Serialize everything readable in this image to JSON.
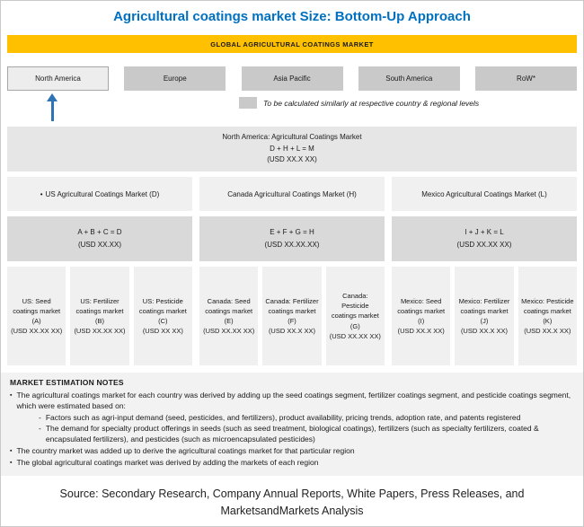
{
  "title": "Agricultural coatings market Size: Bottom-Up Approach",
  "global_bar": "GLOBAL AGRICULTURAL COATINGS MARKET",
  "regions": [
    {
      "label": "North America",
      "highlighted": true
    },
    {
      "label": "Europe",
      "highlighted": false
    },
    {
      "label": "Asia Pacific",
      "highlighted": false
    },
    {
      "label": "South America",
      "highlighted": false
    },
    {
      "label": "RoW*",
      "highlighted": false
    }
  ],
  "legend_note": "To be calculated similarly at respective country & regional levels",
  "na_box": {
    "line1": "North America: Agricultural Coatings Market",
    "line2": "D + H + L = M",
    "line3": "(USD XX.X XX)"
  },
  "countries": [
    {
      "bullet": "•",
      "label": "US Agricultural Coatings Market (D)"
    },
    {
      "bullet": "",
      "label": "Canada Agricultural Coatings Market (H)"
    },
    {
      "bullet": "",
      "label": "Mexico Agricultural Coatings Market (L)"
    }
  ],
  "sums": [
    {
      "formula": "A + B + C = D",
      "value": "(USD XX.XX)"
    },
    {
      "formula": "E + F + G = H",
      "value": "(USD XX.XX.XX)"
    },
    {
      "formula": "I + J + K = L",
      "value": "(USD XX.XX XX)"
    }
  ],
  "segments": [
    {
      "label": "US: Seed coatings market (A)",
      "value": "(USD XX.XX XX)"
    },
    {
      "label": "US: Fertilizer coatings market (B)",
      "value": "(USD XX.XX XX)"
    },
    {
      "label": "US: Pesticide coatings market (C)",
      "value": "(USD XX XX)"
    },
    {
      "label": "Canada: Seed coatings market (E)",
      "value": "(USD XX.XX XX)"
    },
    {
      "label": "Canada: Fertilizer coatings market (F)",
      "value": "(USD XX.X XX)"
    },
    {
      "label": "Canada: Pesticide coatings market (G)",
      "value": "(USD XX.XX XX)"
    },
    {
      "label": "Mexico: Seed coatings market (I)",
      "value": "(USD XX.X XX)"
    },
    {
      "label": "Mexico: Fertilizer coatings market (J)",
      "value": "(USD XX.X XX)"
    },
    {
      "label": "Mexico: Pesticide coatings market (K)",
      "value": "(USD XX.X XX)"
    }
  ],
  "notes": {
    "header": "MARKET ESTIMATION NOTES",
    "items": [
      {
        "level": 1,
        "text": "The agricultural coatings market for each country was derived by adding up the seed coatings segment, fertilizer coatings segment, and pesticide coatings segment, which were estimated based on:"
      },
      {
        "level": 2,
        "text": "Factors such as agri-input demand (seed, pesticides, and fertilizers), product availability, pricing trends, adoption rate, and patents registered"
      },
      {
        "level": 2,
        "text": "The demand for specialty product offerings in seeds (such as seed treatment, biological coatings), fertilizers (such as specialty fertilizers, coated & encapsulated fertilizers), and pesticides (such as microencapsulated pesticides)"
      },
      {
        "level": 1,
        "text": "The country market was added up to derive the agricultural coatings market for that particular region"
      },
      {
        "level": 1,
        "text": "The global agricultural coatings market was derived by adding the markets of each region"
      }
    ]
  },
  "source": "Source: Secondary Research, Company Annual Reports, White Papers, Press Releases, and MarketsandMarkets Analysis",
  "icons": {
    "up_arrow": "↑",
    "legend_swatch": "▮"
  },
  "colors": {
    "title": "#0070C0",
    "global_bar_bg": "#FFC000",
    "region_bg": "#C9C9C9",
    "region_highlight_bg": "#EDEDED",
    "band_bg": "#E6E6E6",
    "light_box_bg": "#F0F0F0",
    "sum_box_bg": "#D9D9D9",
    "arrow": "#2E74B5",
    "notes_bg": "#F2F2F2"
  }
}
